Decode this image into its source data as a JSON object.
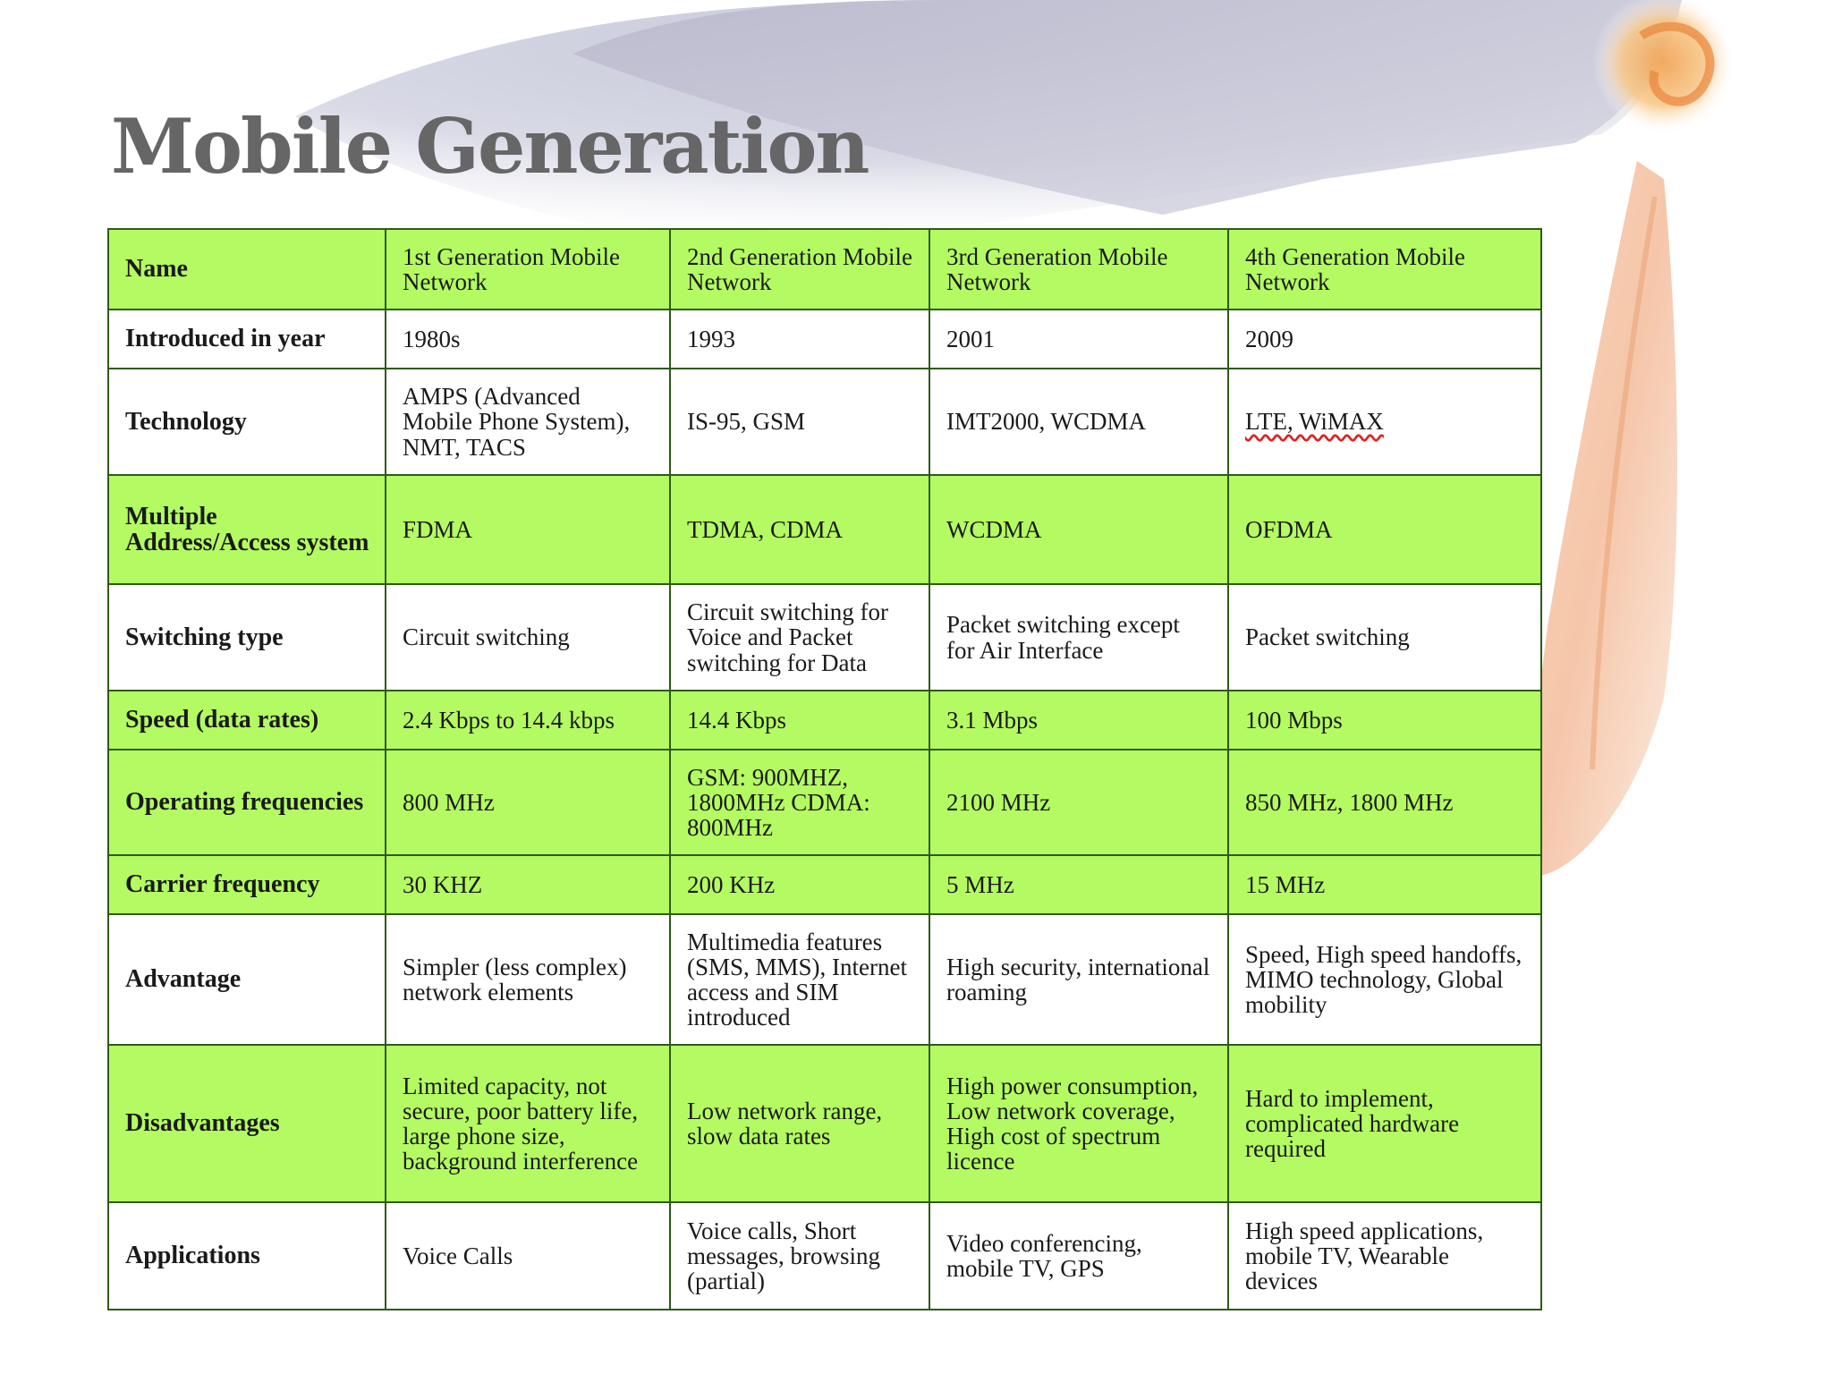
{
  "slide": {
    "title": "Mobile Generation",
    "colors": {
      "header_row": "#b4fb63",
      "border": "#2e5a18",
      "title_text": "#666666"
    }
  },
  "table": {
    "header": {
      "label": "Name",
      "columns": [
        "1st Generation Mobile Network",
        "2nd Generation Mobile Network",
        "3rd Generation Mobile Network",
        "4th Generation Mobile Network"
      ]
    },
    "rows": [
      {
        "label": "Introduced in year",
        "cells": [
          "1980s",
          "1993",
          "2001",
          "2009"
        ]
      },
      {
        "label": "Technology",
        "cells": [
          "AMPS (Advanced Mobile Phone System), NMT, TACS",
          "IS-95, GSM",
          "IMT2000, WCDMA",
          "LTE, WiMAX"
        ]
      },
      {
        "label": "Multiple Address/Access system",
        "cells": [
          "FDMA",
          "TDMA, CDMA",
          "WCDMA",
          "OFDMA"
        ]
      },
      {
        "label": "Switching type",
        "cells": [
          "Circuit switching",
          "Circuit switching for Voice and Packet switching for Data",
          "Packet switching except for Air Interface",
          "Packet switching"
        ]
      },
      {
        "label": "Speed (data rates)",
        "cells": [
          "2.4 Kbps to 14.4 kbps",
          "14.4 Kbps",
          "3.1 Mbps",
          "100 Mbps"
        ]
      },
      {
        "label": "Operating frequencies",
        "cells": [
          "800 MHz",
          "GSM: 900MHZ, 1800MHz CDMA: 800MHz",
          "2100 MHz",
          "850 MHz, 1800 MHz"
        ]
      },
      {
        "label": "Carrier frequency",
        "cells": [
          "30 KHZ",
          "200 KHz",
          "5 MHz",
          "15 MHz"
        ]
      },
      {
        "label": "Advantage",
        "cells": [
          "Simpler (less complex) network elements",
          "Multimedia features (SMS, MMS), Internet access and SIM introduced",
          "High security, international roaming",
          "Speed, High speed handoffs, MIMO technology, Global mobility"
        ]
      },
      {
        "label": "Disadvantages",
        "cells": [
          "Limited capacity, not secure, poor battery life, large phone size, background interference",
          "Low network range, slow data rates",
          "High power consumption, Low network coverage, High cost of spectrum licence",
          "Hard to implement, complicated hardware required"
        ]
      },
      {
        "label": "Applications",
        "cells": [
          "Voice Calls",
          "Voice calls, Short messages, browsing (partial)",
          "Video conferencing, mobile TV, GPS",
          "High speed applications, mobile TV, Wearable devices"
        ]
      }
    ]
  }
}
